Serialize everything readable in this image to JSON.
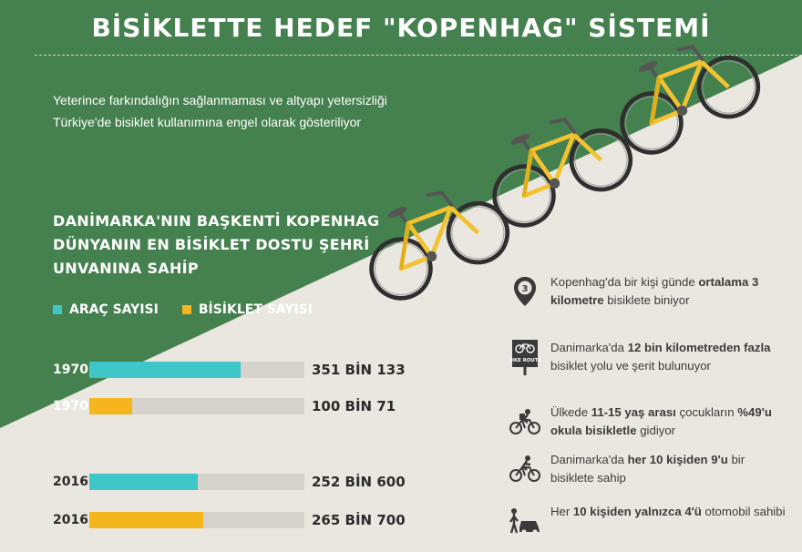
{
  "title": "BİSİKLETTE HEDEF \"KOPENHAG\" SİSTEMİ",
  "intro": "Yeterince farkındalığın sağlanmaması ve altyapı yetersizliği Türkiye'de bisiklet kullanımına engel olarak gösteriliyor",
  "subtitle_lines": [
    "DANİMARKA'NIN BAŞKENTİ KOPENHAG",
    "DÜNYANIN EN BİSİKLET DOSTU ŞEHRİ",
    "UNVANINA SAHİP"
  ],
  "colors": {
    "green": "#45804f",
    "beige": "#e9e7df",
    "teal": "#3ec6c9",
    "yellow": "#f5b51c",
    "track": "#d5d3cc"
  },
  "chart_data": {
    "type": "bar",
    "orientation": "horizontal",
    "xlim": [
      0,
      500000
    ],
    "series": [
      {
        "name": "ARAÇ SAYISI",
        "color": "#3ec6c9"
      },
      {
        "name": "BİSİKLET SAYISI",
        "color": "#f5b51c"
      }
    ],
    "bars": [
      {
        "year": "1970",
        "series": "ARAÇ SAYISI",
        "value": 351133,
        "label": "351 BİN 133"
      },
      {
        "year": "1970",
        "series": "BİSİKLET SAYISI",
        "value": 100071,
        "label": "100 BİN 71"
      },
      {
        "year": "2016",
        "series": "ARAÇ SAYISI",
        "value": 252600,
        "label": "252 BİN 600"
      },
      {
        "year": "2016",
        "series": "BİSİKLET SAYISI",
        "value": 265700,
        "label": "265 BİN 700"
      }
    ]
  },
  "facts": [
    {
      "icon": "map-pin-icon",
      "pin_number": "3",
      "parts": [
        {
          "t": "Kopenhag'da bir kişi günde ",
          "b": false
        },
        {
          "t": "ortalama 3 kilometre",
          "b": true
        },
        {
          "t": " bisiklete biniyor",
          "b": false
        }
      ]
    },
    {
      "icon": "bike-route-sign-icon",
      "sign_text": "BIKE ROUTE",
      "parts": [
        {
          "t": "Danimarka'da ",
          "b": false
        },
        {
          "t": "12 bin kilometreden fazla",
          "b": true
        },
        {
          "t": " bisiklet yolu ve şerit bulunuyor",
          "b": false
        }
      ]
    },
    {
      "icon": "child-cyclist-icon",
      "parts": [
        {
          "t": "Ülkede ",
          "b": false
        },
        {
          "t": "11-15 yaş arası",
          "b": true
        },
        {
          "t": " çocukların ",
          "b": false
        },
        {
          "t": "%49'u okula bisikletle",
          "b": true
        },
        {
          "t": " gidiyor",
          "b": false
        }
      ]
    },
    {
      "icon": "cyclist-icon",
      "parts": [
        {
          "t": "Danimarka'da ",
          "b": false
        },
        {
          "t": "her 10 kişiden 9'u",
          "b": true
        },
        {
          "t": " bir bisiklete sahip",
          "b": false
        }
      ]
    },
    {
      "icon": "person-car-icon",
      "parts": [
        {
          "t": "Her ",
          "b": false
        },
        {
          "t": "10 kişiden yalnızca 4'ü",
          "b": true
        },
        {
          "t": " otomobil sahibi",
          "b": false
        }
      ]
    }
  ]
}
